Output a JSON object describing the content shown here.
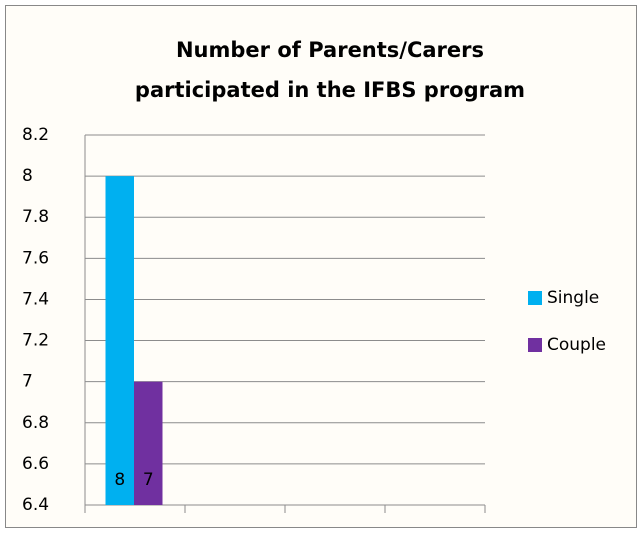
{
  "chart_data": {
    "type": "bar",
    "title": "Number of Parents/Carers participated in the IFBS program",
    "categories": [
      null,
      null,
      null,
      null
    ],
    "series": [
      {
        "name": "Single",
        "color": "#00b0f0",
        "values": [
          8,
          null,
          null,
          null
        ]
      },
      {
        "name": "Couple",
        "color": "#7030a0",
        "values": [
          7,
          null,
          null,
          null
        ]
      }
    ],
    "ylim": [
      6.4,
      8.2
    ],
    "yticks": [
      6.4,
      6.6,
      6.8,
      7,
      7.2,
      7.4,
      7.6,
      7.8,
      8,
      8.2
    ],
    "grid": true,
    "legend": "right",
    "data_labels": true
  }
}
